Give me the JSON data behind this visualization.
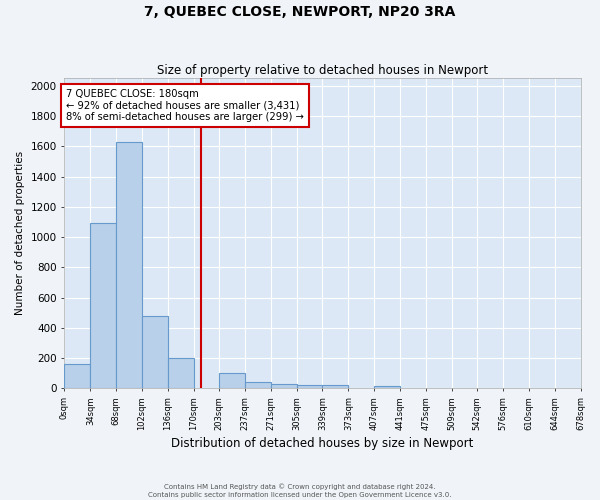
{
  "title": "7, QUEBEC CLOSE, NEWPORT, NP20 3RA",
  "subtitle": "Size of property relative to detached houses in Newport",
  "xlabel": "Distribution of detached houses by size in Newport",
  "ylabel": "Number of detached properties",
  "footer_line1": "Contains HM Land Registry data © Crown copyright and database right 2024.",
  "footer_line2": "Contains public sector information licensed under the Open Government Licence v3.0.",
  "bar_color": "#b8d0ea",
  "bar_edge_color": "#6699cc",
  "background_color": "#dce8f5",
  "grid_color": "#ffffff",
  "vline_color": "#cc0000",
  "vline_x": 180,
  "annotation_title": "7 QUEBEC CLOSE: 180sqm",
  "annotation_line1": "← 92% of detached houses are smaller (3,431)",
  "annotation_line2": "8% of semi-detached houses are larger (299) →",
  "annotation_box_color": "#cc0000",
  "ylim": [
    0,
    2050
  ],
  "yticks": [
    0,
    200,
    400,
    600,
    800,
    1000,
    1200,
    1400,
    1600,
    1800,
    2000
  ],
  "bin_edges": [
    0,
    34,
    68,
    102,
    136,
    170,
    203,
    237,
    271,
    305,
    339,
    373,
    407,
    441,
    475,
    509,
    542,
    576,
    610,
    644,
    678
  ],
  "bin_labels": [
    "0sqm",
    "34sqm",
    "68sqm",
    "102sqm",
    "136sqm",
    "170sqm",
    "203sqm",
    "237sqm",
    "271sqm",
    "305sqm",
    "339sqm",
    "373sqm",
    "407sqm",
    "441sqm",
    "475sqm",
    "509sqm",
    "542sqm",
    "576sqm",
    "610sqm",
    "644sqm",
    "678sqm"
  ],
  "counts": [
    160,
    1090,
    1630,
    480,
    200,
    0,
    100,
    45,
    30,
    20,
    20,
    0,
    15,
    0,
    0,
    0,
    0,
    0,
    0,
    0
  ]
}
